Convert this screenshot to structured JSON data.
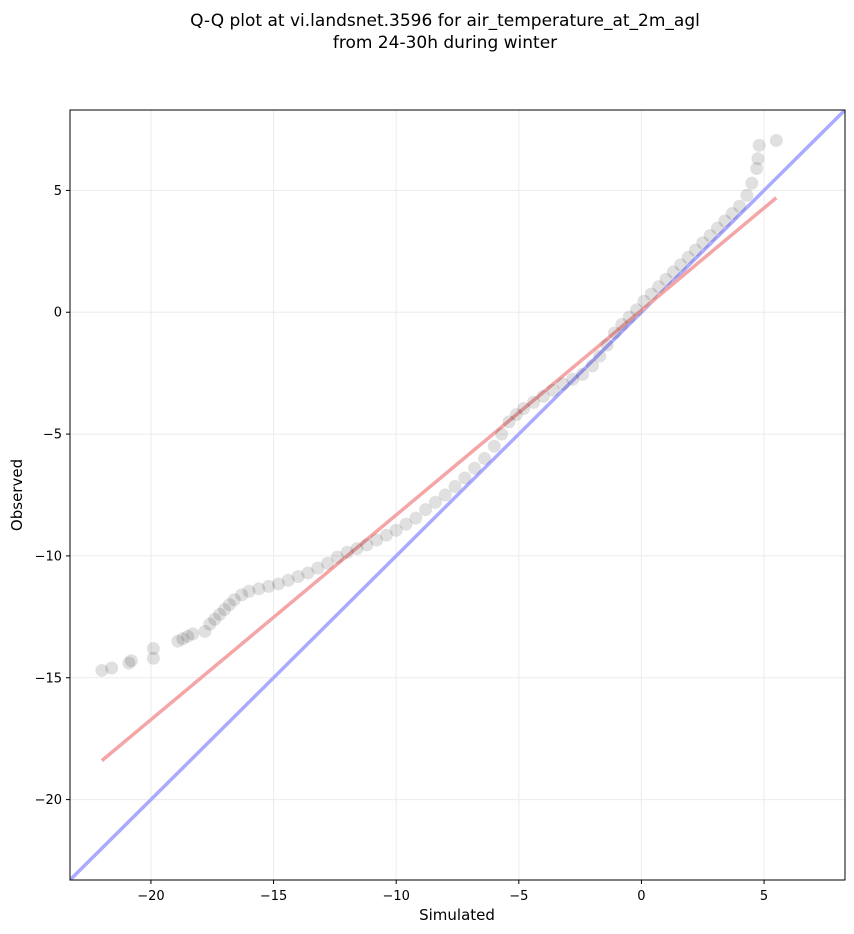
{
  "chart_data": {
    "type": "scatter",
    "title_line1": "Q-Q plot at vi.landsnet.3596 for air_temperature_at_2m_agl",
    "title_line2": "from 24-30h during winter",
    "xlabel": "Simulated",
    "ylabel": "Observed",
    "xlim": [
      -23.3,
      8.3
    ],
    "ylim": [
      -23.3,
      8.3
    ],
    "xticks": [
      -20,
      -15,
      -10,
      -5,
      0,
      5
    ],
    "yticks": [
      -20,
      -15,
      -10,
      -5,
      0,
      5
    ],
    "xtick_labels": [
      "−20",
      "−15",
      "−10",
      "−5",
      "0",
      "5"
    ],
    "ytick_labels": [
      "−20",
      "−15",
      "−10",
      "−5",
      "0",
      "5"
    ],
    "grid": true,
    "reference_line": {
      "color": "#aaaaff",
      "x": [
        -23.3,
        8.3
      ],
      "y": [
        -23.3,
        8.3
      ]
    },
    "fit_line": {
      "color": "#f4a6a6",
      "x": [
        -22,
        5.5
      ],
      "y": [
        -18.4,
        4.7
      ]
    },
    "points_color": "#000000",
    "quantiles": [
      [
        -22.0,
        -14.7
      ],
      [
        -21.6,
        -14.6
      ],
      [
        -20.9,
        -14.4
      ],
      [
        -20.8,
        -14.3
      ],
      [
        -19.9,
        -14.2
      ],
      [
        -19.9,
        -13.8
      ],
      [
        -18.9,
        -13.5
      ],
      [
        -18.7,
        -13.4
      ],
      [
        -18.5,
        -13.3
      ],
      [
        -18.3,
        -13.2
      ],
      [
        -17.8,
        -13.1
      ],
      [
        -17.6,
        -12.8
      ],
      [
        -17.4,
        -12.6
      ],
      [
        -17.2,
        -12.4
      ],
      [
        -17.0,
        -12.2
      ],
      [
        -16.8,
        -12.0
      ],
      [
        -16.6,
        -11.8
      ],
      [
        -16.3,
        -11.6
      ],
      [
        -16.0,
        -11.45
      ],
      [
        -15.6,
        -11.35
      ],
      [
        -15.2,
        -11.25
      ],
      [
        -14.8,
        -11.15
      ],
      [
        -14.4,
        -11.0
      ],
      [
        -14.0,
        -10.85
      ],
      [
        -13.6,
        -10.7
      ],
      [
        -13.2,
        -10.5
      ],
      [
        -12.8,
        -10.3
      ],
      [
        -12.4,
        -10.05
      ],
      [
        -12.0,
        -9.85
      ],
      [
        -11.6,
        -9.7
      ],
      [
        -11.2,
        -9.55
      ],
      [
        -10.8,
        -9.35
      ],
      [
        -10.4,
        -9.15
      ],
      [
        -10.0,
        -8.95
      ],
      [
        -9.6,
        -8.7
      ],
      [
        -9.2,
        -8.45
      ],
      [
        -8.8,
        -8.1
      ],
      [
        -8.4,
        -7.8
      ],
      [
        -8.0,
        -7.5
      ],
      [
        -7.6,
        -7.15
      ],
      [
        -7.2,
        -6.8
      ],
      [
        -6.8,
        -6.4
      ],
      [
        -6.4,
        -6.0
      ],
      [
        -6.0,
        -5.5
      ],
      [
        -5.7,
        -5.0
      ],
      [
        -5.4,
        -4.5
      ],
      [
        -5.1,
        -4.2
      ],
      [
        -4.8,
        -3.95
      ],
      [
        -4.4,
        -3.7
      ],
      [
        -4.0,
        -3.45
      ],
      [
        -3.6,
        -3.2
      ],
      [
        -3.2,
        -2.95
      ],
      [
        -2.8,
        -2.75
      ],
      [
        -2.4,
        -2.55
      ],
      [
        -2.0,
        -2.2
      ],
      [
        -1.7,
        -1.8
      ],
      [
        -1.4,
        -1.35
      ],
      [
        -1.1,
        -0.85
      ],
      [
        -0.8,
        -0.5
      ],
      [
        -0.5,
        -0.2
      ],
      [
        -0.2,
        0.1
      ],
      [
        0.1,
        0.45
      ],
      [
        0.4,
        0.75
      ],
      [
        0.7,
        1.05
      ],
      [
        1.0,
        1.35
      ],
      [
        1.3,
        1.65
      ],
      [
        1.6,
        1.95
      ],
      [
        1.9,
        2.25
      ],
      [
        2.2,
        2.55
      ],
      [
        2.5,
        2.85
      ],
      [
        2.8,
        3.15
      ],
      [
        3.1,
        3.45
      ],
      [
        3.4,
        3.75
      ],
      [
        3.7,
        4.05
      ],
      [
        4.0,
        4.35
      ],
      [
        4.3,
        4.8
      ],
      [
        4.5,
        5.3
      ],
      [
        4.7,
        5.9
      ],
      [
        4.75,
        6.3
      ],
      [
        4.8,
        6.85
      ],
      [
        5.5,
        7.05
      ]
    ]
  }
}
